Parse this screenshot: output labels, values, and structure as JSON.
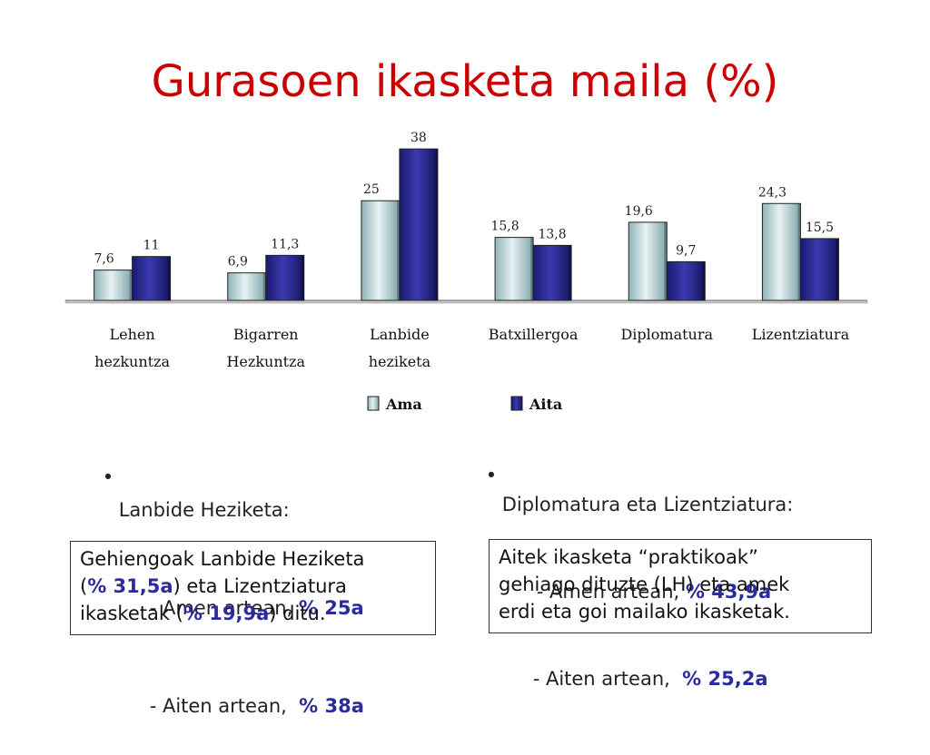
{
  "title": "Gurasoen ikasketa maila (%)",
  "chart_data": {
    "type": "bar",
    "categories": [
      [
        "Lehen",
        "hezkuntza"
      ],
      [
        "Bigarren",
        "Hezkuntza"
      ],
      [
        "Lanbide",
        "heziketa"
      ],
      [
        "Batxillergoa"
      ],
      [
        "Diplomatura"
      ],
      [
        "Lizentziatura"
      ]
    ],
    "series": [
      {
        "name": "Ama",
        "values": [
          7.6,
          6.9,
          25,
          15.8,
          19.6,
          24.3
        ],
        "labels": [
          "7,6",
          "6,9",
          "25",
          "15,8",
          "19,6",
          "24,3"
        ],
        "color": "#b8d4d8"
      },
      {
        "name": "Aita",
        "values": [
          11,
          11.3,
          38,
          13.8,
          9.7,
          15.5
        ],
        "labels": [
          "11",
          "11,3",
          "38",
          "13,8",
          "9,7",
          "15,5"
        ],
        "color": "#2a2a8c"
      }
    ],
    "ylim": [
      0,
      40
    ],
    "grid": false,
    "legend": "bottom"
  },
  "left_bullet": {
    "marker": "•",
    "heading": "Lanbide Heziketa:",
    "line1_prefix": "- Amen artean, ",
    "line1_value": "% 25a",
    "line2_prefix": "- Aiten artean,  ",
    "line2_value": "% 38a"
  },
  "right_bullet": {
    "marker": "•",
    "heading": "Diplomatura eta Lizentziatura:",
    "line1_prefix": "- Amen artean, ",
    "line1_value": "% 43,9a",
    "line2_prefix": "- Aiten artean,  ",
    "line2_value": "% 25,2a"
  },
  "left_box": {
    "t1": "Gehiengoak Lanbide Heziketa",
    "t2": "(",
    "v1": "% 31,5a",
    "t3": ") eta Lizentziatura",
    "t4": "ikasketak (",
    "v2": "% 19,9a",
    "t5": ") ditu."
  },
  "right_box": {
    "line1": "Aitek ikasketa “praktikoak”",
    "line2": "gehiago dituzte (LH) eta amek",
    "line3": "erdi eta goi mailako ikasketak."
  }
}
